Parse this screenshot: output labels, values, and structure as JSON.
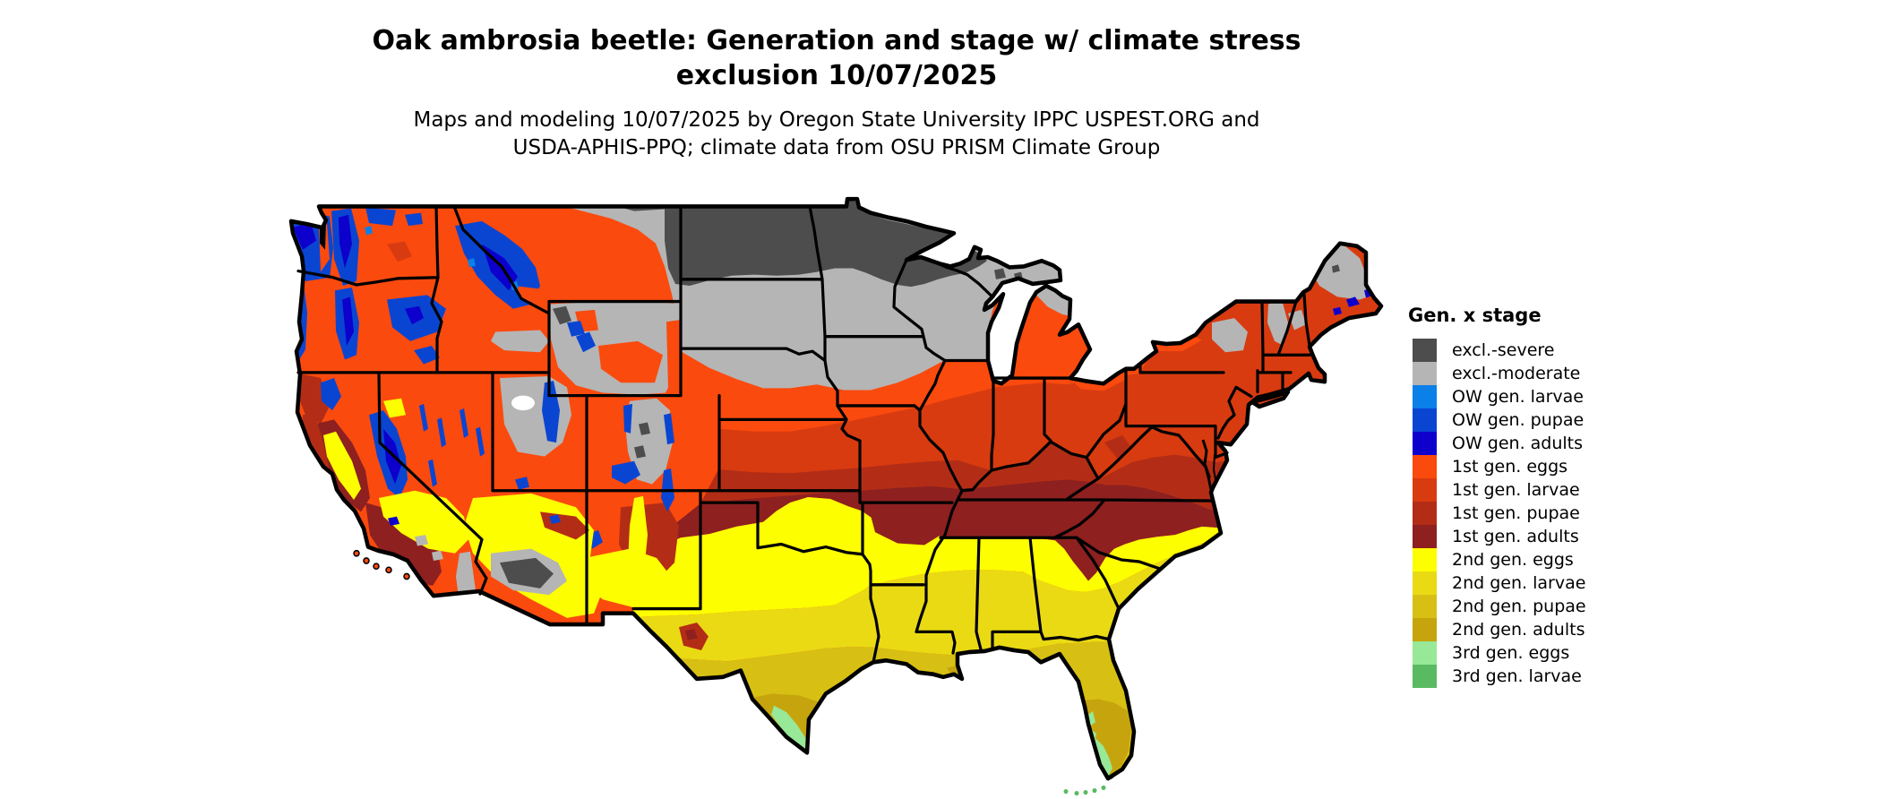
{
  "page": {
    "background": "#ffffff"
  },
  "title": {
    "line1": "Oak ambrosia beetle: Generation and stage w/ climate stress",
    "line2": "exclusion 10/07/2025"
  },
  "subtitle": {
    "line1": "Maps and modeling 10/07/2025 by Oregon State University IPPC USPEST.ORG and",
    "line2": "USDA-APHIS-PPQ; climate data from OSU PRISM Climate Group"
  },
  "legend": {
    "title": "Gen. x stage",
    "items": [
      {
        "key": "exclSevere",
        "label": "excl.-severe",
        "color": "#4d4d4d"
      },
      {
        "key": "exclModerate",
        "label": "excl.-moderate",
        "color": "#b5b5b5"
      },
      {
        "key": "owLarvae",
        "label": "OW gen. larvae",
        "color": "#0a80e8"
      },
      {
        "key": "owPupae",
        "label": "OW gen. pupae",
        "color": "#0a45d2"
      },
      {
        "key": "owAdults",
        "label": "OW gen. adults",
        "color": "#0d00cd"
      },
      {
        "key": "g1Eggs",
        "label": "1st gen. eggs",
        "color": "#fb4a0e"
      },
      {
        "key": "g1Larvae",
        "label": "1st gen. larvae",
        "color": "#d83b10"
      },
      {
        "key": "g1Pupae",
        "label": "1st gen. pupae",
        "color": "#b32d16"
      },
      {
        "key": "g1Adults",
        "label": "1st gen. adults",
        "color": "#8e2020"
      },
      {
        "key": "g2Eggs",
        "label": "2nd gen. eggs",
        "color": "#fdfe00"
      },
      {
        "key": "g2Larvae",
        "label": "2nd gen. larvae",
        "color": "#eada14"
      },
      {
        "key": "g2Pupae",
        "label": "2nd gen. pupae",
        "color": "#d7c013"
      },
      {
        "key": "g2Adults",
        "label": "2nd gen. adults",
        "color": "#c6a40d"
      },
      {
        "key": "g3Eggs",
        "label": "3rd gen. eggs",
        "color": "#97e897"
      },
      {
        "key": "g3Larvae",
        "label": "3rd gen. larvae",
        "color": "#59ba62"
      }
    ]
  },
  "map": {
    "region": "Continental United States",
    "border_color": "#000000",
    "water_color": "#ffffff"
  }
}
